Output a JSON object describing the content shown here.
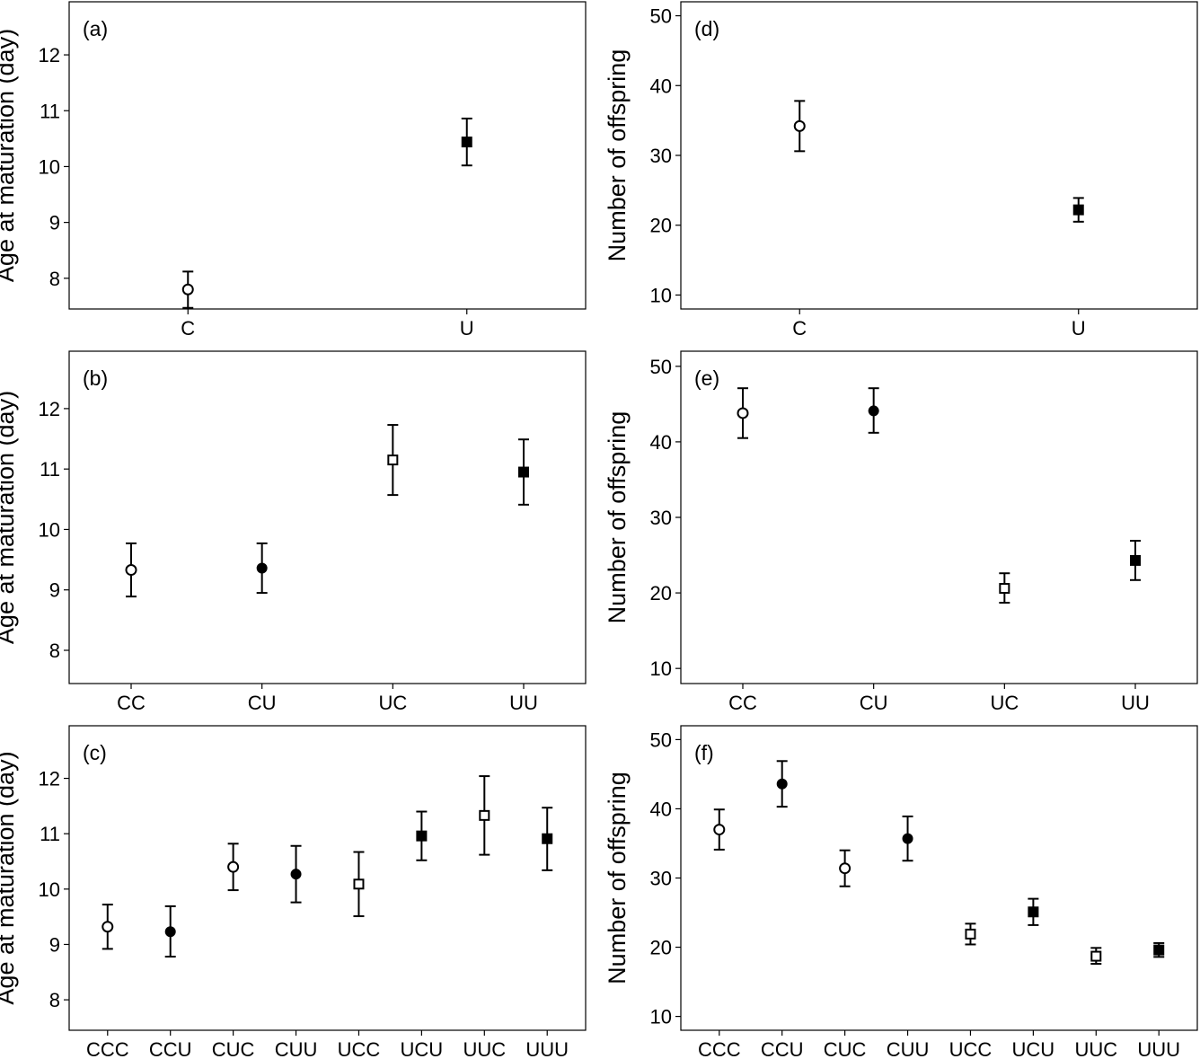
{
  "chart_data": [
    {
      "panel": "(a)",
      "type": "scatter",
      "ylabel": "Age at maturation (day)",
      "xlabel": "",
      "categories": [
        "C",
        "U"
      ],
      "yticks": [
        8,
        9,
        10,
        11,
        12
      ],
      "ylim": [
        7.45,
        12.95
      ],
      "points": [
        {
          "category": "C",
          "y": 7.8,
          "lo": 7.47,
          "hi": 8.12,
          "marker": "open-circle"
        },
        {
          "category": "U",
          "y": 10.44,
          "lo": 10.02,
          "hi": 10.86,
          "marker": "filled-square"
        }
      ]
    },
    {
      "panel": "(b)",
      "type": "scatter",
      "ylabel": "Age at maturation (day)",
      "xlabel": "",
      "categories": [
        "CC",
        "CU",
        "UC",
        "UU"
      ],
      "yticks": [
        8,
        9,
        10,
        11,
        12
      ],
      "ylim": [
        7.45,
        12.95
      ],
      "points": [
        {
          "category": "CC",
          "y": 9.33,
          "lo": 8.89,
          "hi": 9.77,
          "marker": "open-circle"
        },
        {
          "category": "CU",
          "y": 9.36,
          "lo": 8.95,
          "hi": 9.77,
          "marker": "filled-circle"
        },
        {
          "category": "UC",
          "y": 11.15,
          "lo": 10.57,
          "hi": 11.73,
          "marker": "open-square"
        },
        {
          "category": "UU",
          "y": 10.95,
          "lo": 10.41,
          "hi": 11.49,
          "marker": "filled-square"
        }
      ]
    },
    {
      "panel": "(c)",
      "type": "scatter",
      "ylabel": "Age at maturation (day)",
      "xlabel": "",
      "categories": [
        "CCC",
        "CCU",
        "CUC",
        "CUU",
        "UCC",
        "UCU",
        "UUC",
        "UUU"
      ],
      "yticks": [
        8,
        9,
        10,
        11,
        12
      ],
      "ylim": [
        7.45,
        12.95
      ],
      "points": [
        {
          "category": "CCC",
          "y": 9.32,
          "lo": 8.92,
          "hi": 9.72,
          "marker": "open-circle"
        },
        {
          "category": "CCU",
          "y": 9.23,
          "lo": 8.78,
          "hi": 9.69,
          "marker": "filled-circle"
        },
        {
          "category": "CUC",
          "y": 10.4,
          "lo": 9.98,
          "hi": 10.82,
          "marker": "open-circle"
        },
        {
          "category": "CUU",
          "y": 10.27,
          "lo": 9.76,
          "hi": 10.78,
          "marker": "filled-circle"
        },
        {
          "category": "UCC",
          "y": 10.09,
          "lo": 9.51,
          "hi": 10.67,
          "marker": "open-square"
        },
        {
          "category": "UCU",
          "y": 10.96,
          "lo": 10.52,
          "hi": 11.4,
          "marker": "filled-square"
        },
        {
          "category": "UUC",
          "y": 11.33,
          "lo": 10.62,
          "hi": 12.04,
          "marker": "open-square"
        },
        {
          "category": "UUU",
          "y": 10.91,
          "lo": 10.34,
          "hi": 11.47,
          "marker": "filled-square"
        }
      ]
    },
    {
      "panel": "(d)",
      "type": "scatter",
      "ylabel": "Number of offspring",
      "xlabel": "",
      "categories": [
        "C",
        "U"
      ],
      "yticks": [
        10,
        20,
        30,
        40,
        50
      ],
      "ylim": [
        8,
        52
      ],
      "points": [
        {
          "category": "C",
          "y": 34.2,
          "lo": 30.6,
          "hi": 37.8,
          "marker": "open-circle"
        },
        {
          "category": "U",
          "y": 22.2,
          "lo": 20.5,
          "hi": 23.9,
          "marker": "filled-square"
        }
      ]
    },
    {
      "panel": "(e)",
      "type": "scatter",
      "ylabel": "Number of offspring",
      "xlabel": "",
      "categories": [
        "CC",
        "CU",
        "UC",
        "UU"
      ],
      "yticks": [
        10,
        20,
        30,
        40,
        50
      ],
      "ylim": [
        8,
        52
      ],
      "points": [
        {
          "category": "CC",
          "y": 43.8,
          "lo": 40.5,
          "hi": 47.1,
          "marker": "open-circle"
        },
        {
          "category": "CU",
          "y": 44.1,
          "lo": 41.2,
          "hi": 47.1,
          "marker": "filled-circle"
        },
        {
          "category": "UC",
          "y": 20.6,
          "lo": 18.7,
          "hi": 22.6,
          "marker": "open-square"
        },
        {
          "category": "UU",
          "y": 24.3,
          "lo": 21.7,
          "hi": 26.9,
          "marker": "filled-square"
        }
      ]
    },
    {
      "panel": "(f)",
      "type": "scatter",
      "ylabel": "Number of offspring",
      "xlabel": "",
      "categories": [
        "CCC",
        "CCU",
        "CUC",
        "CUU",
        "UCC",
        "UCU",
        "UUC",
        "UUU"
      ],
      "yticks": [
        10,
        20,
        30,
        40,
        50
      ],
      "ylim": [
        8,
        52
      ],
      "points": [
        {
          "category": "CCC",
          "y": 37.0,
          "lo": 34.1,
          "hi": 39.9,
          "marker": "open-circle"
        },
        {
          "category": "CCU",
          "y": 43.6,
          "lo": 40.3,
          "hi": 46.9,
          "marker": "filled-circle"
        },
        {
          "category": "CUC",
          "y": 31.4,
          "lo": 28.8,
          "hi": 34.0,
          "marker": "open-circle"
        },
        {
          "category": "CUU",
          "y": 35.7,
          "lo": 32.5,
          "hi": 38.9,
          "marker": "filled-circle"
        },
        {
          "category": "UCC",
          "y": 21.9,
          "lo": 20.4,
          "hi": 23.4,
          "marker": "open-square"
        },
        {
          "category": "UCU",
          "y": 25.1,
          "lo": 23.2,
          "hi": 27.0,
          "marker": "filled-square"
        },
        {
          "category": "UUC",
          "y": 18.7,
          "lo": 17.6,
          "hi": 19.9,
          "marker": "open-square"
        },
        {
          "category": "UUU",
          "y": 19.6,
          "lo": 18.6,
          "hi": 20.6,
          "marker": "filled-square"
        }
      ]
    }
  ]
}
